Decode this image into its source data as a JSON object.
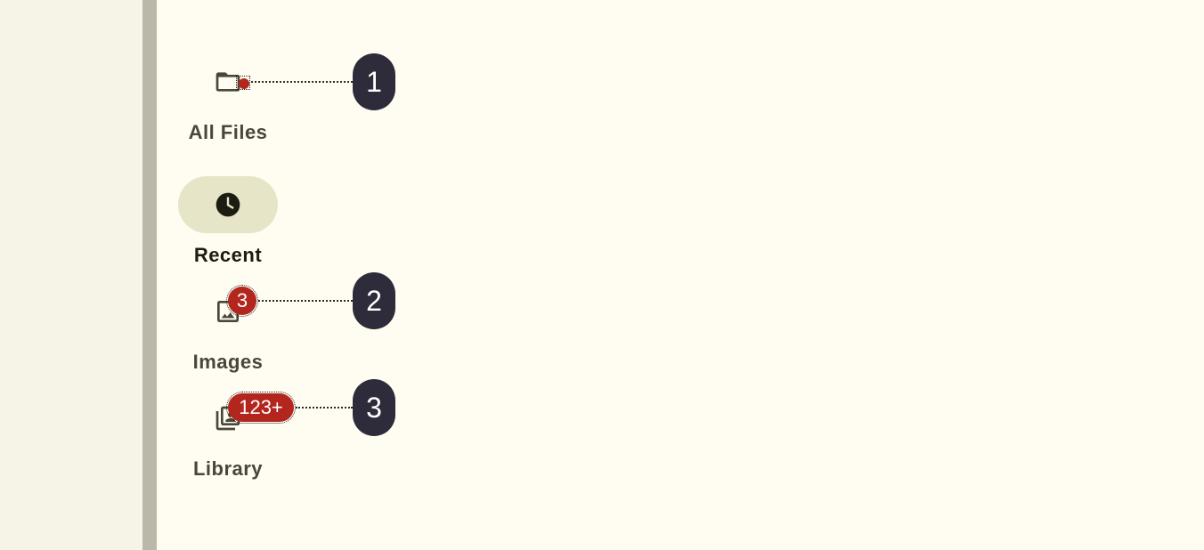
{
  "nav_rail": {
    "items": [
      {
        "label": "All Files",
        "icon": "folder-icon",
        "badge": "",
        "active": false
      },
      {
        "label": "Recent",
        "icon": "clock-icon",
        "badge": "",
        "active": true
      },
      {
        "label": "Images",
        "icon": "image-icon",
        "badge": "3",
        "active": false
      },
      {
        "label": "Library",
        "icon": "library-icon",
        "badge": "123+",
        "active": false
      }
    ]
  },
  "callouts": [
    "1",
    "2",
    "3"
  ],
  "colors": {
    "surface": "#fffcf2",
    "side_panel": "#f6f3e7",
    "divider": "#bab8a8",
    "active_indicator": "#e6e5c8",
    "badge": "#b3261e",
    "callout": "#2e2b3a",
    "icon": "#48473b"
  }
}
